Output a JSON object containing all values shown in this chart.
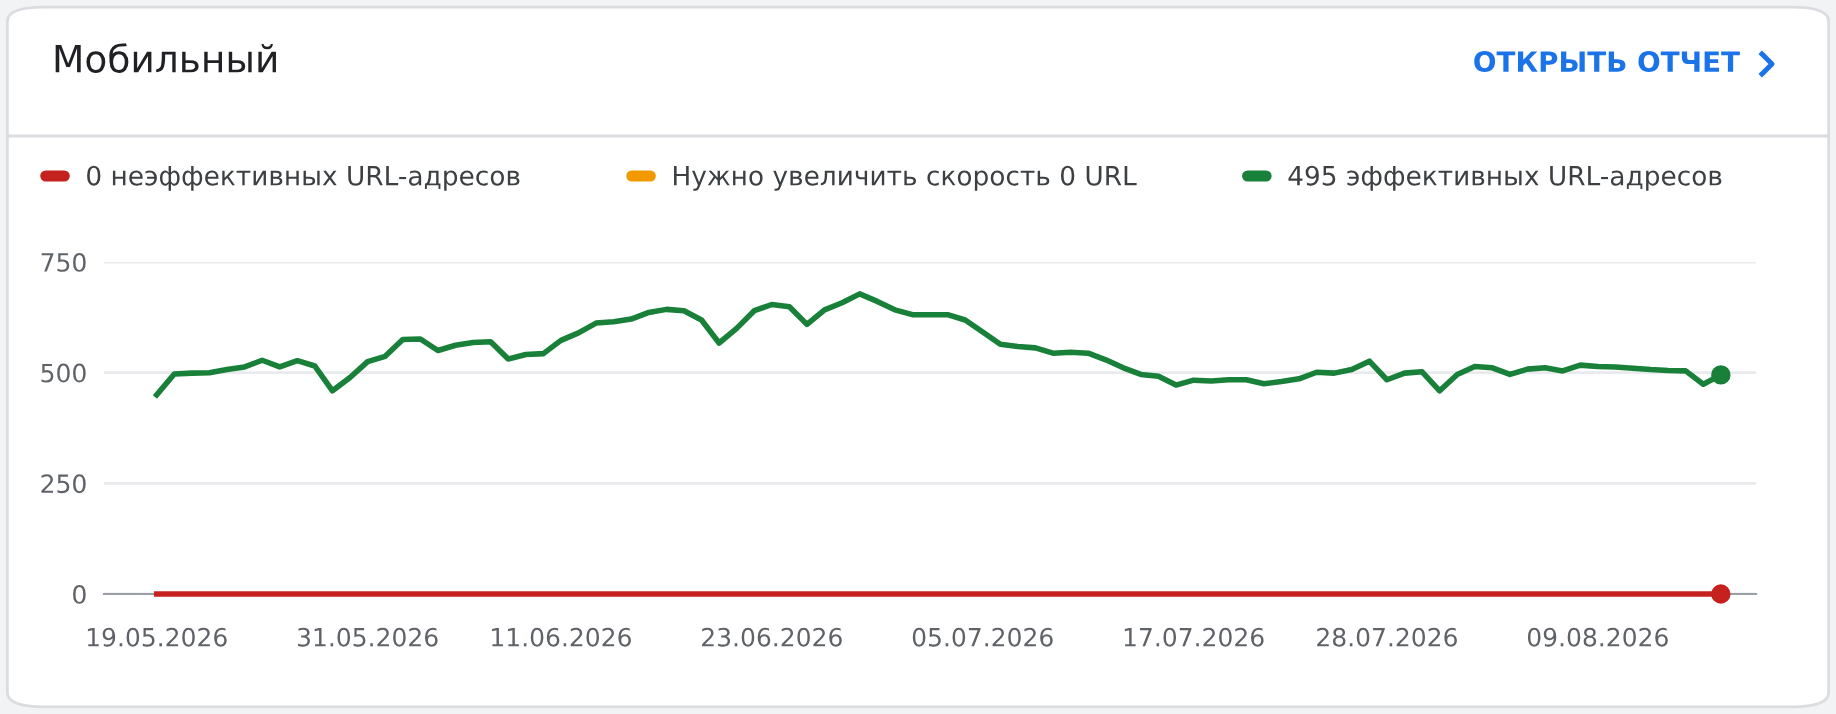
{
  "chart_data": {
    "type": "line",
    "title": "Мобильный",
    "annotations": [
      "ОТКРЫТЬ ОТЧЕТ"
    ],
    "x": [
      "2026-05-19",
      "2026-05-20",
      "2026-05-21",
      "2026-05-22",
      "2026-05-23",
      "2026-05-24",
      "2026-05-25",
      "2026-05-26",
      "2026-05-27",
      "2026-05-28",
      "2026-05-29",
      "2026-05-30",
      "2026-05-31",
      "2026-06-01",
      "2026-06-02",
      "2026-06-03",
      "2026-06-04",
      "2026-06-05",
      "2026-06-06",
      "2026-06-07",
      "2026-06-08",
      "2026-06-09",
      "2026-06-10",
      "2026-06-11",
      "2026-06-12",
      "2026-06-13",
      "2026-06-14",
      "2026-06-15",
      "2026-06-16",
      "2026-06-17",
      "2026-06-18",
      "2026-06-19",
      "2026-06-20",
      "2026-06-21",
      "2026-06-22",
      "2026-06-23",
      "2026-06-24",
      "2026-06-25",
      "2026-06-26",
      "2026-06-27",
      "2026-06-28",
      "2026-06-29",
      "2026-06-30",
      "2026-07-01",
      "2026-07-02",
      "2026-07-03",
      "2026-07-04",
      "2026-07-05",
      "2026-07-06",
      "2026-07-07",
      "2026-07-08",
      "2026-07-09",
      "2026-07-10",
      "2026-07-11",
      "2026-07-12",
      "2026-07-13",
      "2026-07-14",
      "2026-07-15",
      "2026-07-16",
      "2026-07-17",
      "2026-07-18",
      "2026-07-19",
      "2026-07-20",
      "2026-07-21",
      "2026-07-22",
      "2026-07-23",
      "2026-07-24",
      "2026-07-25",
      "2026-07-26",
      "2026-07-27",
      "2026-07-28",
      "2026-07-29",
      "2026-07-30",
      "2026-07-31",
      "2026-08-01",
      "2026-08-02",
      "2026-08-03",
      "2026-08-04",
      "2026-08-05",
      "2026-08-06",
      "2026-08-07",
      "2026-08-08",
      "2026-08-09",
      "2026-08-10",
      "2026-08-11",
      "2026-08-12",
      "2026-08-13",
      "2026-08-14",
      "2026-08-15",
      "2026-08-16"
    ],
    "series": [
      {
        "name": "0 неэффективных URL-адресов",
        "color": "#c5221f",
        "values": [
          0,
          0,
          0,
          0,
          0,
          0,
          0,
          0,
          0,
          0,
          0,
          0,
          0,
          0,
          0,
          0,
          0,
          0,
          0,
          0,
          0,
          0,
          0,
          0,
          0,
          0,
          0,
          0,
          0,
          0,
          0,
          0,
          0,
          0,
          0,
          0,
          0,
          0,
          0,
          0,
          0,
          0,
          0,
          0,
          0,
          0,
          0,
          0,
          0,
          0,
          0,
          0,
          0,
          0,
          0,
          0,
          0,
          0,
          0,
          0,
          0,
          0,
          0,
          0,
          0,
          0,
          0,
          0,
          0,
          0,
          0,
          0,
          0,
          0,
          0,
          0,
          0,
          0,
          0,
          0,
          0,
          0,
          0,
          0,
          0,
          0,
          0,
          0,
          0,
          0
        ]
      },
      {
        "name": "Нужно увеличить скорость 0 URL",
        "color": "#f29900",
        "values": [
          null,
          null,
          null,
          null,
          null,
          null,
          null,
          null,
          null,
          null,
          null,
          null,
          null,
          null,
          null,
          null,
          null,
          null,
          null,
          null,
          null,
          null,
          null,
          null,
          null,
          null,
          null,
          null,
          null,
          null,
          null,
          null,
          null,
          null,
          null,
          null,
          null,
          null,
          null,
          null,
          null,
          null,
          null,
          null,
          null,
          null,
          null,
          null,
          null,
          null,
          null,
          null,
          null,
          null,
          null,
          null,
          null,
          null,
          null,
          null,
          null,
          null,
          null,
          null,
          null,
          null,
          null,
          null,
          null,
          null,
          null,
          null,
          null,
          null,
          null,
          null,
          null,
          null,
          null,
          null,
          null,
          null,
          null,
          null,
          null,
          null,
          null,
          null,
          null,
          null
        ]
      },
      {
        "name": "495 эффективных URL-адресов",
        "color": "#188038",
        "values": [
          450,
          497,
          499,
          500,
          507,
          513,
          528,
          513,
          527,
          515,
          459,
          489,
          525,
          537,
          575,
          576,
          550,
          562,
          568,
          570,
          531,
          541,
          543,
          573,
          590,
          612,
          615,
          621,
          636,
          643,
          640,
          619,
          567,
          600,
          640,
          654,
          649,
          609,
          642,
          658,
          678,
          661,
          642,
          631,
          631,
          631,
          619,
          592,
          564,
          559,
          556,
          544,
          546,
          544,
          529,
          511,
          496,
          492,
          472,
          483,
          481,
          484,
          484,
          475,
          480,
          486,
          501,
          499,
          507,
          526,
          484,
          499,
          502,
          459,
          496,
          514,
          511,
          496,
          508,
          511,
          504,
          517,
          514,
          513,
          510,
          507,
          505,
          504,
          474,
          495
        ]
      }
    ],
    "xlim": [
      "2026-05-16",
      "2026-08-18"
    ],
    "xticks": [
      {
        "value": "2026-05-19",
        "label": "19.05.2026"
      },
      {
        "value": "2026-05-31",
        "label": "31.05.2026"
      },
      {
        "value": "2026-06-11",
        "label": "11.06.2026"
      },
      {
        "value": "2026-06-23",
        "label": "23.06.2026"
      },
      {
        "value": "2026-07-05",
        "label": "05.07.2026"
      },
      {
        "value": "2026-07-17",
        "label": "17.07.2026"
      },
      {
        "value": "2026-07-28",
        "label": "28.07.2026"
      },
      {
        "value": "2026-08-09",
        "label": "09.08.2026"
      }
    ],
    "ylim": [
      0,
      750
    ],
    "yticks": [
      0,
      250,
      500,
      750
    ],
    "grid": "y",
    "legend": "top",
    "marker": "none",
    "line_style": "solid"
  }
}
